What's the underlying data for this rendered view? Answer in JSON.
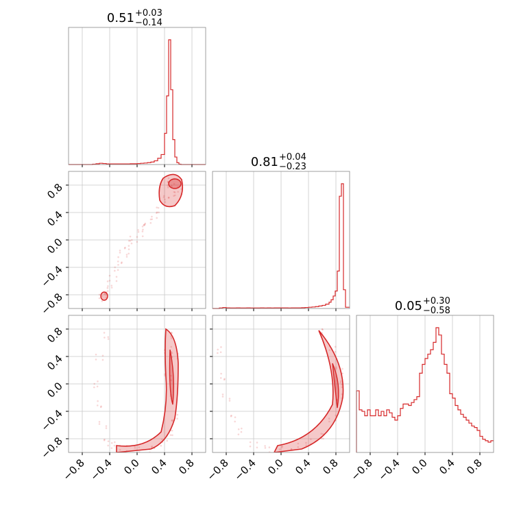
{
  "chart_data": {
    "type": "corner",
    "accent_color": "#d62728",
    "axis_range": [
      -1.0,
      1.0
    ],
    "tick_values": [
      -0.8,
      -0.4,
      0.0,
      0.4,
      0.8
    ],
    "tick_labels": [
      "−0.8",
      "−0.4",
      "0.0",
      "0.4",
      "0.8"
    ],
    "grid": true,
    "titles": [
      {
        "value": "0.51",
        "plus": "+0.03",
        "minus": "−0.14"
      },
      {
        "value": "0.81",
        "plus": "+0.04",
        "minus": "−0.23"
      },
      {
        "value": "0.05",
        "plus": "+0.30",
        "minus": "−0.58"
      }
    ],
    "histograms": [
      {
        "bin_edges": [
          -1.0,
          0.9
        ],
        "bins": [
          -1.0,
          -0.95,
          -0.9,
          -0.85,
          -0.8,
          -0.75,
          -0.7,
          -0.65,
          -0.6,
          -0.55,
          -0.5,
          -0.45,
          -0.4,
          -0.35,
          -0.3,
          -0.25,
          -0.2,
          -0.15,
          -0.1,
          -0.05,
          0.0,
          0.05,
          0.1,
          0.15,
          0.2,
          0.25,
          0.3,
          0.35,
          0.4,
          0.43,
          0.46,
          0.49,
          0.52,
          0.55,
          0.58,
          0.61,
          0.64
        ],
        "counts": [
          0,
          0,
          0,
          0,
          0,
          0,
          0,
          0.3,
          0.6,
          1.0,
          0.8,
          0.5,
          0.5,
          0.5,
          0.5,
          0.5,
          0.5,
          0.5,
          0.6,
          0.6,
          0.8,
          1.0,
          1.2,
          1.5,
          2.0,
          3.0,
          5.0,
          8.0,
          25.0,
          55.0,
          100.0,
          60.0,
          20.0,
          6.0,
          1.5,
          0.3,
          0.0
        ]
      },
      {
        "bins": [
          -1.0,
          -0.95,
          -0.9,
          -0.85,
          -0.8,
          -0.75,
          -0.7,
          -0.65,
          -0.6,
          -0.55,
          -0.5,
          -0.45,
          -0.4,
          -0.35,
          -0.3,
          -0.25,
          -0.2,
          -0.15,
          -0.1,
          -0.05,
          0.0,
          0.05,
          0.1,
          0.15,
          0.2,
          0.25,
          0.3,
          0.35,
          0.4,
          0.45,
          0.5,
          0.55,
          0.6,
          0.65,
          0.7,
          0.73,
          0.76,
          0.79,
          0.82,
          0.85,
          0.88,
          0.91,
          0.94
        ],
        "counts": [
          0,
          0,
          0.4,
          0.8,
          0.5,
          0.4,
          0.4,
          0.5,
          0.4,
          0.4,
          0.5,
          0.4,
          0.4,
          0.4,
          0.5,
          0.4,
          0.5,
          0.4,
          0.5,
          0.5,
          0.5,
          0.5,
          0.4,
          0.5,
          0.5,
          0.5,
          0.6,
          0.8,
          1.0,
          1.2,
          1.5,
          2.0,
          2.5,
          3.5,
          5.0,
          7.0,
          10.0,
          14.0,
          30.0,
          90.0,
          100.0,
          15.0,
          1.0
        ]
      },
      {
        "bins": [
          -1.0,
          -0.96,
          -0.92,
          -0.88,
          -0.84,
          -0.8,
          -0.76,
          -0.72,
          -0.68,
          -0.64,
          -0.6,
          -0.56,
          -0.52,
          -0.48,
          -0.44,
          -0.4,
          -0.36,
          -0.32,
          -0.28,
          -0.24,
          -0.2,
          -0.16,
          -0.12,
          -0.08,
          -0.04,
          0.0,
          0.04,
          0.08,
          0.12,
          0.16,
          0.2,
          0.24,
          0.28,
          0.32,
          0.36,
          0.4,
          0.44,
          0.48,
          0.52,
          0.56,
          0.6,
          0.64,
          0.68,
          0.72,
          0.76,
          0.8,
          0.84,
          0.88,
          0.92,
          0.96
        ],
        "counts": [
          42,
          29,
          28,
          25,
          29,
          25,
          25,
          29,
          25,
          28,
          25,
          29,
          27,
          24,
          22,
          25,
          30,
          33,
          33,
          32,
          34,
          36,
          38,
          54,
          60,
          64,
          67,
          70,
          75,
          85,
          80,
          67,
          60,
          54,
          40,
          37,
          32,
          29,
          26,
          24,
          22,
          20,
          18,
          17,
          15,
          11,
          9,
          8,
          7,
          8
        ]
      }
    ],
    "scatter_2d": [
      {
        "panel": "x1_vs_x0",
        "x": [
          0.45,
          0.5,
          0.55,
          0.4,
          0.5,
          0.6,
          0.3,
          0.25,
          0.15,
          0.1,
          0.05,
          -0.05,
          -0.1,
          -0.15,
          -0.2,
          -0.25,
          -0.3,
          -0.35,
          -0.4,
          -0.45,
          -0.5,
          -0.48
        ],
        "y": [
          0.8,
          0.85,
          0.75,
          0.6,
          0.65,
          0.7,
          0.45,
          0.35,
          0.25,
          0.2,
          0.1,
          0.0,
          -0.05,
          -0.15,
          -0.2,
          -0.3,
          -0.4,
          -0.55,
          -0.65,
          -0.75,
          -0.8,
          -0.85
        ]
      },
      {
        "panel": "x2_vs_x0",
        "x": [
          0.5,
          0.55,
          0.45,
          0.5,
          0.55,
          0.45,
          0.5,
          0.4,
          0.3,
          0.2,
          0.0,
          -0.2,
          -0.35,
          -0.45,
          -0.5,
          -0.55,
          -0.6,
          -0.55,
          -0.45
        ],
        "y": [
          0.7,
          0.4,
          0.1,
          -0.2,
          -0.5,
          0.5,
          -0.7,
          -0.8,
          -0.9,
          -0.95,
          -0.95,
          -0.95,
          -0.9,
          -0.85,
          -0.6,
          -0.3,
          0.0,
          0.4,
          0.7
        ]
      },
      {
        "panel": "x2_vs_x1",
        "x": [
          0.6,
          0.75,
          0.85,
          0.88,
          0.85,
          0.75,
          0.6,
          0.4,
          0.2,
          0.0,
          -0.2,
          -0.4,
          -0.6,
          -0.7,
          -0.8,
          -0.85,
          -0.9
        ],
        "y": [
          0.75,
          0.5,
          0.2,
          0.0,
          -0.2,
          -0.5,
          -0.75,
          -0.85,
          -0.92,
          -0.95,
          -0.95,
          -0.9,
          -0.7,
          -0.5,
          -0.2,
          0.1,
          0.5
        ]
      }
    ]
  }
}
